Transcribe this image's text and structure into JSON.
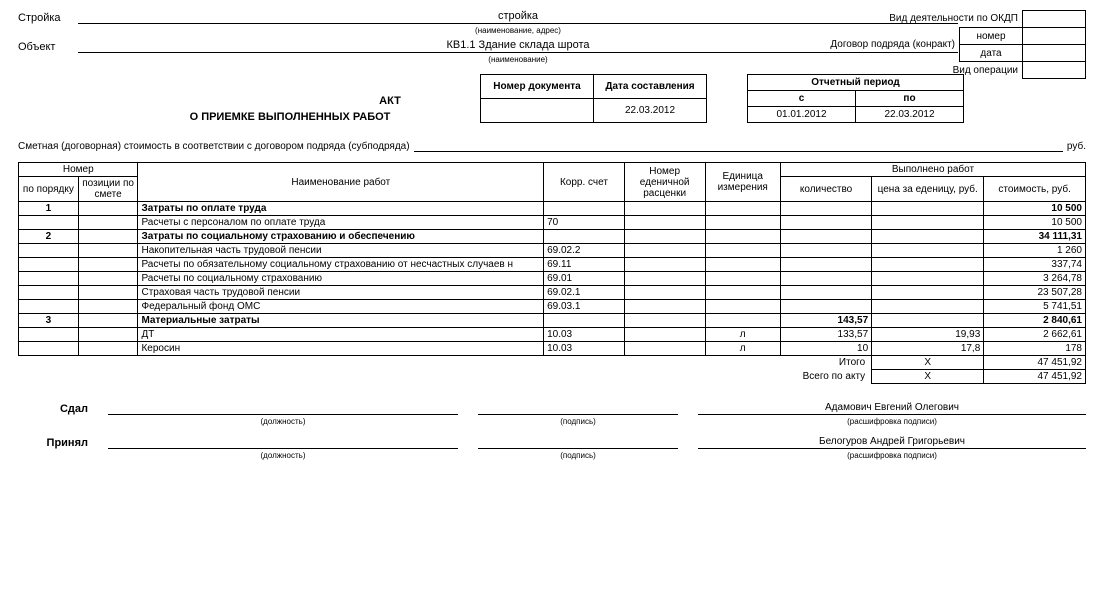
{
  "header": {
    "stroika_label": "Стройка",
    "stroika_value": "стройка",
    "stroika_sub": "(наименование, адрес)",
    "object_label": "Объект",
    "object_value": "КВ1.1 Здание склада шрота",
    "object_sub": "(наименование)"
  },
  "right_meta": {
    "okdp_label": "Вид деятельности по ОКДП",
    "contract_label": "Договор подряда (конракт)",
    "number_label": "номер",
    "date_label": "дата",
    "operation_label": "Вид операции",
    "okdp_value": "",
    "number_value": "",
    "date_value": "",
    "operation_value": ""
  },
  "doc": {
    "title_top": "АКТ",
    "title_bottom": "О ПРИЕМКЕ ВЫПОЛНЕННЫХ РАБОТ",
    "doc_no_header": "Номер документа",
    "doc_date_header": "Дата составления",
    "doc_no": "",
    "doc_date": "22.03.2012",
    "period_header": "Отчетный период",
    "period_from_header": "с",
    "period_to_header": "по",
    "period_from": "01.01.2012",
    "period_to": "22.03.2012"
  },
  "contract_line": "Сметная (договорная) стоимость в соответствии  с договором подряда (субподряда)",
  "rub": "руб.",
  "table": {
    "headers": {
      "nomer": "Номер",
      "po_poryadku": "по порядку",
      "po_smete": "позиции по смете",
      "name": "Наименование работ",
      "korr": "Корр. счет",
      "rascenka": "Номер еденичной расценки",
      "unit": "Единица измерения",
      "vypolneno": "Выполнено работ",
      "qty": "количество",
      "price": "цена за еденицу, руб.",
      "cost": "стоимость, руб."
    },
    "rows": [
      {
        "n": "1",
        "smete": "",
        "name": "Затраты по оплате труда",
        "korr": "",
        "rasc": "",
        "unit": "",
        "qty": "",
        "price": "",
        "cost": "10 500",
        "bold": true
      },
      {
        "n": "",
        "smete": "",
        "name": "Расчеты с персоналом по оплате труда",
        "korr": "70",
        "rasc": "",
        "unit": "",
        "qty": "",
        "price": "",
        "cost": "10 500",
        "bold": false
      },
      {
        "n": "2",
        "smete": "",
        "name": "Затраты по социальному страхованию и обеспечению",
        "korr": "",
        "rasc": "",
        "unit": "",
        "qty": "",
        "price": "",
        "cost": "34 111,31",
        "bold": true
      },
      {
        "n": "",
        "smete": "",
        "name": "Накопительная часть трудовой пенсии",
        "korr": "69.02.2",
        "rasc": "",
        "unit": "",
        "qty": "",
        "price": "",
        "cost": "1 260",
        "bold": false
      },
      {
        "n": "",
        "smete": "",
        "name": "Расчеты по обязательному социальному страхованию от несчастных случаев н",
        "korr": "69.11",
        "rasc": "",
        "unit": "",
        "qty": "",
        "price": "",
        "cost": "337,74",
        "bold": false
      },
      {
        "n": "",
        "smete": "",
        "name": "Расчеты по социальному страхованию",
        "korr": "69.01",
        "rasc": "",
        "unit": "",
        "qty": "",
        "price": "",
        "cost": "3 264,78",
        "bold": false
      },
      {
        "n": "",
        "smete": "",
        "name": "Страховая часть трудовой пенсии",
        "korr": "69.02.1",
        "rasc": "",
        "unit": "",
        "qty": "",
        "price": "",
        "cost": "23 507,28",
        "bold": false
      },
      {
        "n": "",
        "smete": "",
        "name": "Федеральный фонд ОМС",
        "korr": "69.03.1",
        "rasc": "",
        "unit": "",
        "qty": "",
        "price": "",
        "cost": "5 741,51",
        "bold": false
      },
      {
        "n": "3",
        "smete": "",
        "name": "Материальные затраты",
        "korr": "",
        "rasc": "",
        "unit": "",
        "qty": "143,57",
        "price": "",
        "cost": "2 840,61",
        "bold": true
      },
      {
        "n": "",
        "smete": "",
        "name": "ДТ",
        "korr": "10.03",
        "rasc": "",
        "unit": "л",
        "qty": "133,57",
        "price": "19,93",
        "cost": "2 662,61",
        "bold": false
      },
      {
        "n": "",
        "smete": "",
        "name": "Керосин",
        "korr": "10.03",
        "rasc": "",
        "unit": "л",
        "qty": "10",
        "price": "17,8",
        "cost": "178",
        "bold": false
      }
    ],
    "summary": [
      {
        "label": "Итого",
        "price": "Х",
        "cost": "47 451,92"
      },
      {
        "label": "Всего по акту",
        "price": "Х",
        "cost": "47 451,92"
      }
    ]
  },
  "sign": {
    "sdal_label": "Сдал",
    "prinyal_label": "Принял",
    "position_sub": "(должность)",
    "sign_sub": "(подпись)",
    "decode_sub": "(расшифровка подписи)",
    "sdal_name": "Адамович Евгений Олегович",
    "prinyal_name": "Белогуров Андрей Григорьевич"
  }
}
